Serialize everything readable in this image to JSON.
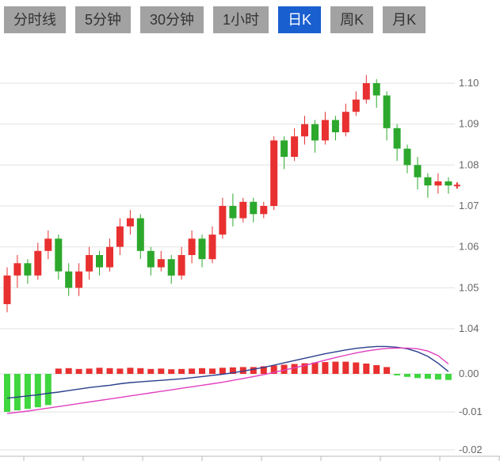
{
  "tabs": {
    "active_index": 4,
    "items": [
      {
        "label": "分时线"
      },
      {
        "label": "5分钟"
      },
      {
        "label": "30分钟"
      },
      {
        "label": "1小时"
      },
      {
        "label": "日K"
      },
      {
        "label": "周K"
      },
      {
        "label": "月K"
      }
    ]
  },
  "colors": {
    "up": "#e83030",
    "down": "#2ca82c",
    "hist_down": "#3fd63f",
    "dif_line": "#2b3f8c",
    "dea_line": "#e040c0",
    "grid": "#e2e2e2",
    "axis_text": "#666666",
    "active_tab_bg": "#1a5fd0",
    "tab_bg": "#a2a2a2"
  },
  "chart_data": {
    "type": "candlestick",
    "title": "",
    "subpanel": "MACD",
    "candle_format": "[open,high,low,close]",
    "price_axis": {
      "side": "right",
      "ticks": [
        1.1,
        1.09,
        1.08,
        1.07,
        1.06,
        1.05,
        1.04
      ],
      "labels": [
        "1.10",
        "1.09",
        "1.08",
        "1.07",
        "1.06",
        "1.05",
        "1.04"
      ],
      "range": [
        1.035,
        1.108
      ],
      "grid": true
    },
    "macd_axis": {
      "side": "right",
      "ticks": [
        0.0,
        -0.01,
        -0.02
      ],
      "labels": [
        "0.00",
        "-0.01",
        "-0.02"
      ],
      "grid": true
    },
    "candles": [
      [
        1.046,
        1.055,
        1.044,
        1.053
      ],
      [
        1.053,
        1.058,
        1.05,
        1.056
      ],
      [
        1.056,
        1.057,
        1.051,
        1.053
      ],
      [
        1.053,
        1.061,
        1.052,
        1.059
      ],
      [
        1.059,
        1.064,
        1.057,
        1.062
      ],
      [
        1.062,
        1.063,
        1.052,
        1.054
      ],
      [
        1.054,
        1.056,
        1.048,
        1.05
      ],
      [
        1.05,
        1.056,
        1.048,
        1.054
      ],
      [
        1.054,
        1.06,
        1.052,
        1.058
      ],
      [
        1.058,
        1.059,
        1.053,
        1.055
      ],
      [
        1.055,
        1.062,
        1.054,
        1.06
      ],
      [
        1.06,
        1.067,
        1.058,
        1.065
      ],
      [
        1.065,
        1.069,
        1.063,
        1.067
      ],
      [
        1.067,
        1.068,
        1.057,
        1.059
      ],
      [
        1.059,
        1.06,
        1.053,
        1.055
      ],
      [
        1.055,
        1.059,
        1.054,
        1.057
      ],
      [
        1.057,
        1.058,
        1.051,
        1.053
      ],
      [
        1.053,
        1.06,
        1.052,
        1.058
      ],
      [
        1.058,
        1.064,
        1.056,
        1.062
      ],
      [
        1.062,
        1.063,
        1.055,
        1.057
      ],
      [
        1.057,
        1.065,
        1.056,
        1.063
      ],
      [
        1.063,
        1.072,
        1.062,
        1.07
      ],
      [
        1.07,
        1.073,
        1.065,
        1.067
      ],
      [
        1.067,
        1.072,
        1.066,
        1.071
      ],
      [
        1.071,
        1.072,
        1.066,
        1.068
      ],
      [
        1.068,
        1.071,
        1.067,
        1.07
      ],
      [
        1.07,
        1.087,
        1.069,
        1.086
      ],
      [
        1.086,
        1.087,
        1.079,
        1.082
      ],
      [
        1.082,
        1.089,
        1.081,
        1.087
      ],
      [
        1.087,
        1.092,
        1.085,
        1.09
      ],
      [
        1.09,
        1.091,
        1.083,
        1.086
      ],
      [
        1.086,
        1.093,
        1.085,
        1.091
      ],
      [
        1.091,
        1.092,
        1.086,
        1.088
      ],
      [
        1.088,
        1.095,
        1.087,
        1.093
      ],
      [
        1.093,
        1.098,
        1.092,
        1.096
      ],
      [
        1.096,
        1.102,
        1.095,
        1.1
      ],
      [
        1.1,
        1.101,
        1.094,
        1.097
      ],
      [
        1.097,
        1.098,
        1.086,
        1.089
      ],
      [
        1.089,
        1.09,
        1.081,
        1.084
      ],
      [
        1.084,
        1.085,
        1.078,
        1.08
      ],
      [
        1.08,
        1.082,
        1.074,
        1.077
      ],
      [
        1.077,
        1.078,
        1.072,
        1.075
      ],
      [
        1.075,
        1.078,
        1.073,
        1.076
      ],
      [
        1.076,
        1.077,
        1.073,
        1.075
      ]
    ],
    "macd": {
      "histogram": [
        -0.01,
        -0.0096,
        -0.0092,
        -0.0088,
        -0.0082,
        0.0014,
        0.0015,
        0.0013,
        0.0014,
        0.0016,
        0.0015,
        0.0014,
        0.0016,
        0.0015,
        0.0013,
        0.0014,
        0.0012,
        0.0013,
        0.0014,
        0.0015,
        0.0014,
        0.0016,
        0.0017,
        0.0018,
        0.0018,
        0.002,
        0.0022,
        0.0024,
        0.0026,
        0.0028,
        0.003,
        0.0031,
        0.0032,
        0.0032,
        0.003,
        0.0027,
        0.0023,
        0.0018,
        -0.0004,
        -0.0008,
        -0.0011,
        -0.0013,
        -0.0015,
        -0.0016
      ],
      "dif": [
        -0.0064,
        -0.0061,
        -0.0058,
        -0.0055,
        -0.0051,
        -0.0048,
        -0.0044,
        -0.004,
        -0.0036,
        -0.0033,
        -0.003,
        -0.0026,
        -0.0023,
        -0.0021,
        -0.0019,
        -0.0017,
        -0.0015,
        -0.0013,
        -0.001,
        -0.0007,
        -0.0004,
        -0.0001,
        0.0003,
        0.0007,
        0.0012,
        0.0017,
        0.0023,
        0.0029,
        0.0035,
        0.0041,
        0.0047,
        0.0053,
        0.0058,
        0.0063,
        0.0067,
        0.007,
        0.0072,
        0.0072,
        0.007,
        0.0066,
        0.0058,
        0.0046,
        0.0028,
        0.0006
      ],
      "dea": [
        -0.0104,
        -0.0101,
        -0.0098,
        -0.0094,
        -0.009,
        -0.0086,
        -0.0082,
        -0.0078,
        -0.0074,
        -0.007,
        -0.0066,
        -0.0062,
        -0.0058,
        -0.0054,
        -0.005,
        -0.0046,
        -0.0042,
        -0.0038,
        -0.0034,
        -0.003,
        -0.0026,
        -0.0022,
        -0.0017,
        -0.0012,
        -0.0007,
        -0.0002,
        0.0004,
        0.001,
        0.0016,
        0.0022,
        0.0029,
        0.0036,
        0.0043,
        0.0049,
        0.0055,
        0.006,
        0.0064,
        0.0067,
        0.0068,
        0.0068,
        0.0066,
        0.006,
        0.0048,
        0.0026
      ]
    },
    "last_price": 1.075,
    "legend": "none",
    "convention": "red=up, green=down (CN market style)"
  }
}
